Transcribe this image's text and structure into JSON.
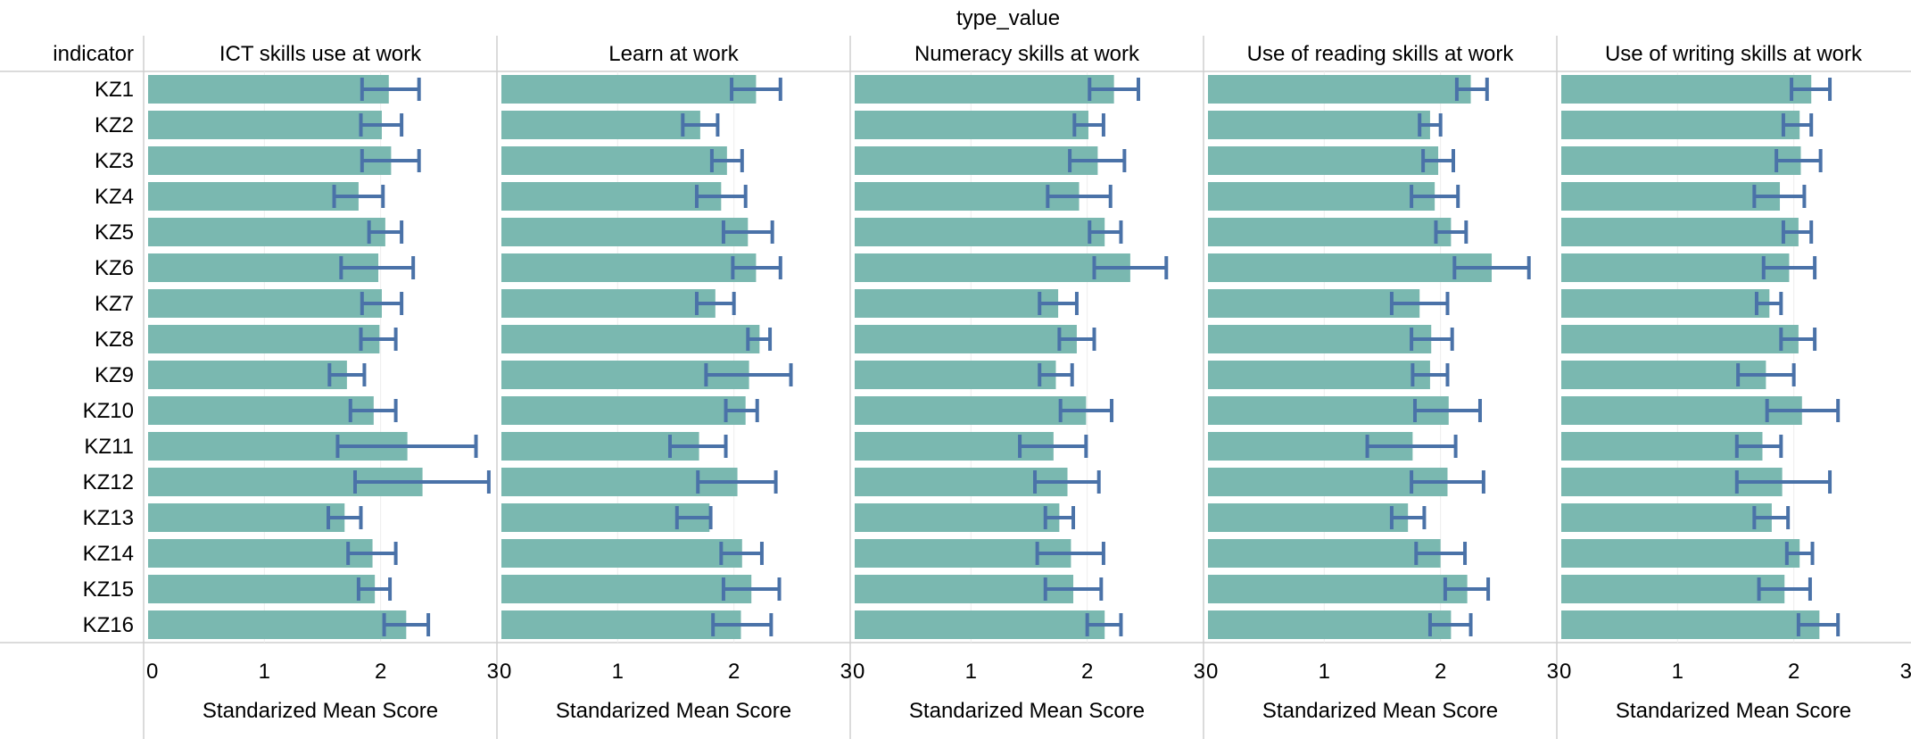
{
  "chart_data": {
    "type": "bar",
    "orientation": "horizontal",
    "column_header": "type_value",
    "row_header": "indicator",
    "xlabel": "Standarized Mean Score",
    "xlim": [
      0,
      3
    ],
    "xticks": [
      "0",
      "1",
      "2",
      "3"
    ],
    "categories": [
      "KZ1",
      "KZ2",
      "KZ3",
      "KZ4",
      "KZ5",
      "KZ6",
      "KZ7",
      "KZ8",
      "KZ9",
      "KZ10",
      "KZ11",
      "KZ12",
      "KZ13",
      "KZ14",
      "KZ15",
      "KZ16"
    ],
    "colors": {
      "bar": "#7ab8b0",
      "error": "#4a72a8",
      "divider": "#cfcfcf",
      "grid": "#eeeeee",
      "text": "#000000"
    },
    "panels": [
      {
        "title": "ICT skills use at work",
        "values": [
          2.07,
          2.01,
          2.09,
          1.81,
          2.04,
          1.98,
          2.01,
          1.99,
          1.71,
          1.94,
          2.23,
          2.36,
          1.69,
          1.93,
          1.95,
          2.22
        ],
        "lower": [
          1.84,
          1.83,
          1.84,
          1.6,
          1.9,
          1.66,
          1.84,
          1.83,
          1.56,
          1.74,
          1.63,
          1.78,
          1.55,
          1.72,
          1.81,
          2.03
        ],
        "upper": [
          2.33,
          2.18,
          2.33,
          2.02,
          2.18,
          2.28,
          2.18,
          2.13,
          1.86,
          2.13,
          2.82,
          2.93,
          1.83,
          2.13,
          2.08,
          2.41
        ]
      },
      {
        "title": "Learn at work",
        "values": [
          2.19,
          1.71,
          1.94,
          1.89,
          2.12,
          2.19,
          1.84,
          2.22,
          2.13,
          2.1,
          1.7,
          2.03,
          1.79,
          2.07,
          2.15,
          2.06
        ],
        "lower": [
          1.98,
          1.56,
          1.81,
          1.68,
          1.91,
          1.99,
          1.68,
          2.12,
          1.76,
          1.93,
          1.45,
          1.69,
          1.51,
          1.89,
          1.91,
          1.82
        ],
        "upper": [
          2.4,
          1.86,
          2.07,
          2.1,
          2.33,
          2.4,
          2.0,
          2.31,
          2.49,
          2.2,
          1.93,
          2.36,
          1.8,
          2.24,
          2.39,
          2.32
        ]
      },
      {
        "title": "Numeracy skills at work",
        "values": [
          2.23,
          2.01,
          2.09,
          1.93,
          2.15,
          2.37,
          1.75,
          1.91,
          1.73,
          1.99,
          1.71,
          1.83,
          1.76,
          1.86,
          1.88,
          2.15
        ],
        "lower": [
          2.02,
          1.89,
          1.85,
          1.66,
          2.02,
          2.06,
          1.59,
          1.76,
          1.59,
          1.77,
          1.42,
          1.55,
          1.64,
          1.57,
          1.64,
          2.0
        ],
        "upper": [
          2.44,
          2.14,
          2.32,
          2.2,
          2.29,
          2.68,
          1.91,
          2.06,
          1.87,
          2.21,
          1.99,
          2.1,
          1.88,
          2.14,
          2.12,
          2.29
        ]
      },
      {
        "title": "Use of reading skills at work",
        "values": [
          2.26,
          1.91,
          1.98,
          1.95,
          2.09,
          2.44,
          1.82,
          1.92,
          1.91,
          2.07,
          1.76,
          2.06,
          1.72,
          2.0,
          2.23,
          2.09
        ],
        "lower": [
          2.14,
          1.82,
          1.85,
          1.75,
          1.96,
          2.12,
          1.58,
          1.75,
          1.76,
          1.78,
          1.37,
          1.75,
          1.58,
          1.79,
          2.04,
          1.91
        ],
        "upper": [
          2.4,
          2.0,
          2.11,
          2.15,
          2.22,
          2.76,
          2.06,
          2.1,
          2.06,
          2.34,
          2.13,
          2.37,
          1.86,
          2.21,
          2.41,
          2.26
        ]
      },
      {
        "title": "Use of writing skills at work",
        "values": [
          2.15,
          2.05,
          2.06,
          1.88,
          2.04,
          1.96,
          1.79,
          2.04,
          1.76,
          2.07,
          1.73,
          1.9,
          1.81,
          2.05,
          1.92,
          2.22
        ],
        "lower": [
          1.98,
          1.91,
          1.85,
          1.66,
          1.91,
          1.74,
          1.68,
          1.89,
          1.52,
          1.77,
          1.51,
          1.51,
          1.66,
          1.94,
          1.7,
          2.04
        ],
        "upper": [
          2.31,
          2.15,
          2.23,
          2.09,
          2.15,
          2.18,
          1.89,
          2.18,
          2.0,
          2.38,
          1.89,
          2.31,
          1.95,
          2.16,
          2.14,
          2.38
        ]
      }
    ]
  }
}
